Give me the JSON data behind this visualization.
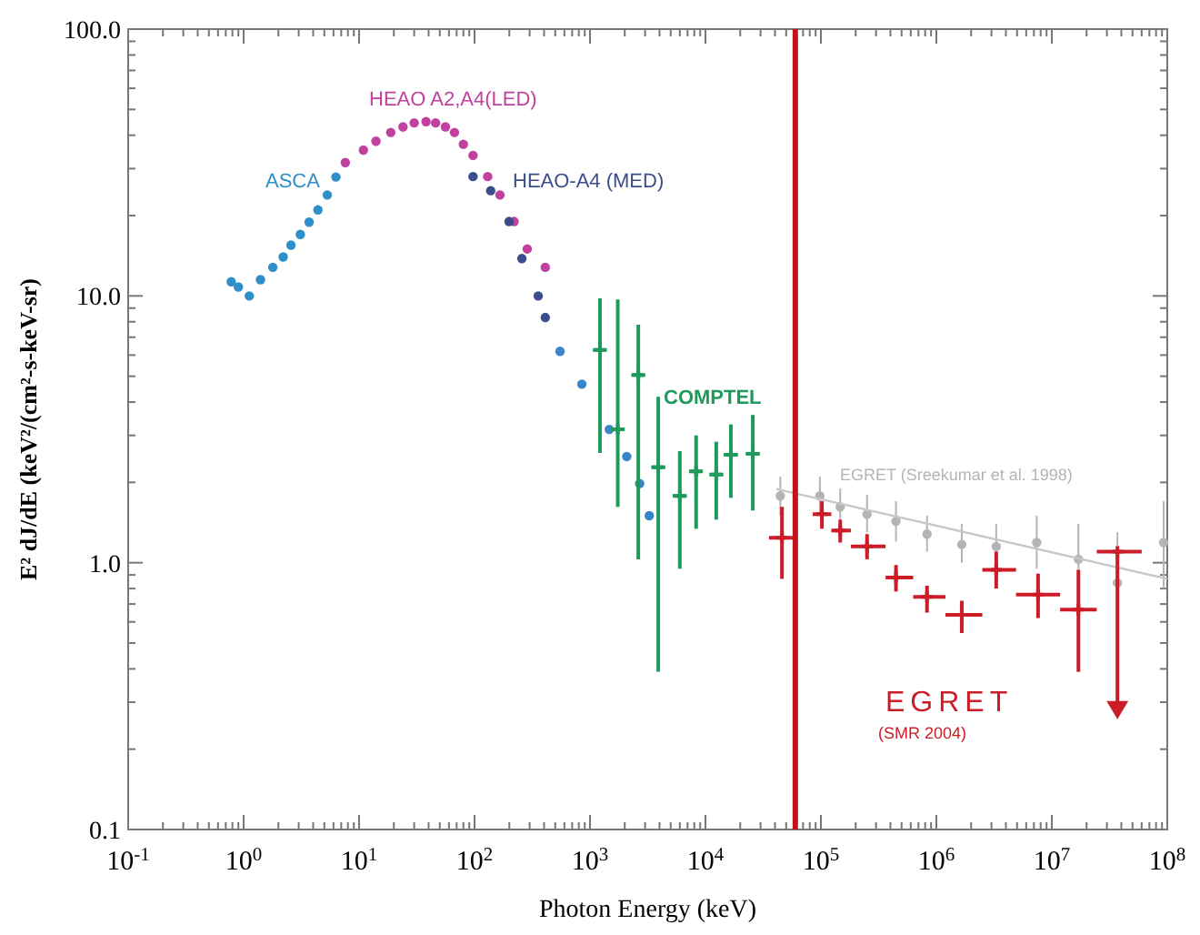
{
  "chart_data": {
    "type": "scatter",
    "log": "xy",
    "xlabel": "Photon Energy (keV)",
    "ylabel": "E² dJ/dE (keV²/(cm²-s-keV-sr)",
    "xlim": [
      0.1,
      100000000
    ],
    "ylim": [
      0.1,
      100
    ],
    "xticks": [
      {
        "value": 0.1,
        "label": "10$^{-1}$"
      },
      {
        "value": 1,
        "label": "10$^{0}$"
      },
      {
        "value": 10,
        "label": "10$^{1}$"
      },
      {
        "value": 100,
        "label": "10$^{2}$"
      },
      {
        "value": 1000,
        "label": "10$^{3}$"
      },
      {
        "value": 10000,
        "label": "10$^{4}$"
      },
      {
        "value": 100000,
        "label": "10$^{5}$"
      },
      {
        "value": 1000000,
        "label": "10$^{6}$"
      },
      {
        "value": 10000000,
        "label": "10$^{7}$"
      },
      {
        "value": 100000000,
        "label": "10$^{8}$"
      },
      {
        "value": 0.2,
        "label": null
      },
      {
        "value": 0.3,
        "label": null
      },
      {
        "value": 0.4,
        "label": null
      },
      {
        "value": 0.5,
        "label": null
      },
      {
        "value": 0.6,
        "label": null
      },
      {
        "value": 0.7,
        "label": null
      },
      {
        "value": 0.8,
        "label": null
      },
      {
        "value": 0.9,
        "label": null
      },
      {
        "value": 2,
        "label": null
      },
      {
        "value": 3,
        "label": null
      },
      {
        "value": 4,
        "label": null
      },
      {
        "value": 5,
        "label": null
      },
      {
        "value": 6,
        "label": null
      },
      {
        "value": 7,
        "label": null
      },
      {
        "value": 8,
        "label": null
      },
      {
        "value": 9,
        "label": null
      },
      {
        "value": 20,
        "label": null
      },
      {
        "value": 30,
        "label": null
      },
      {
        "value": 40,
        "label": null
      },
      {
        "value": 50,
        "label": null
      },
      {
        "value": 60,
        "label": null
      },
      {
        "value": 70,
        "label": null
      },
      {
        "value": 80,
        "label": null
      },
      {
        "value": 90,
        "label": null
      },
      {
        "value": 200,
        "label": null
      },
      {
        "value": 300,
        "label": null
      },
      {
        "value": 400,
        "label": null
      },
      {
        "value": 500,
        "label": null
      },
      {
        "value": 600,
        "label": null
      },
      {
        "value": 700,
        "label": null
      },
      {
        "value": 800,
        "label": null
      },
      {
        "value": 900,
        "label": null
      },
      {
        "value": 2000,
        "label": null
      },
      {
        "value": 3000,
        "label": null
      },
      {
        "value": 4000,
        "label": null
      },
      {
        "value": 5000,
        "label": null
      },
      {
        "value": 6000,
        "label": null
      },
      {
        "value": 7000,
        "label": null
      },
      {
        "value": 8000,
        "label": null
      },
      {
        "value": 9000,
        "label": null
      },
      {
        "value": 20000,
        "label": null
      },
      {
        "value": 30000,
        "label": null
      },
      {
        "value": 40000,
        "label": null
      },
      {
        "value": 50000,
        "label": null
      },
      {
        "value": 60000,
        "label": null
      },
      {
        "value": 70000,
        "label": null
      },
      {
        "value": 80000,
        "label": null
      },
      {
        "value": 90000,
        "label": null
      },
      {
        "value": 200000,
        "label": null
      },
      {
        "value": 300000,
        "label": null
      },
      {
        "value": 400000,
        "label": null
      },
      {
        "value": 500000,
        "label": null
      },
      {
        "value": 600000,
        "label": null
      },
      {
        "value": 700000,
        "label": null
      },
      {
        "value": 800000,
        "label": null
      },
      {
        "value": 900000,
        "label": null
      },
      {
        "value": 2000000,
        "label": null
      },
      {
        "value": 3000000,
        "label": null
      },
      {
        "value": 4000000,
        "label": null
      },
      {
        "value": 5000000,
        "label": null
      },
      {
        "value": 6000000,
        "label": null
      },
      {
        "value": 7000000,
        "label": null
      },
      {
        "value": 8000000,
        "label": null
      },
      {
        "value": 9000000,
        "label": null
      },
      {
        "value": 20000000,
        "label": null
      },
      {
        "value": 30000000,
        "label": null
      },
      {
        "value": 40000000,
        "label": null
      },
      {
        "value": 50000000,
        "label": null
      },
      {
        "value": 60000000,
        "label": null
      },
      {
        "value": 70000000,
        "label": null
      },
      {
        "value": 80000000,
        "label": null
      },
      {
        "value": 90000000,
        "label": null
      }
    ],
    "yticks": [
      {
        "value": 0.1,
        "label": "0.1"
      },
      {
        "value": 1,
        "label": "1.0"
      },
      {
        "value": 10,
        "label": "10.0"
      },
      {
        "value": 100,
        "label": "100.0"
      },
      {
        "value": 0.2,
        "label": null
      },
      {
        "value": 0.3,
        "label": null
      },
      {
        "value": 0.4,
        "label": null
      },
      {
        "value": 0.5,
        "label": null
      },
      {
        "value": 0.6,
        "label": null
      },
      {
        "value": 0.7,
        "label": null
      },
      {
        "value": 0.8,
        "label": null
      },
      {
        "value": 0.9,
        "label": null
      },
      {
        "value": 2,
        "label": null
      },
      {
        "value": 3,
        "label": null
      },
      {
        "value": 4,
        "label": null
      },
      {
        "value": 5,
        "label": null
      },
      {
        "value": 6,
        "label": null
      },
      {
        "value": 7,
        "label": null
      },
      {
        "value": 8,
        "label": null
      },
      {
        "value": 9,
        "label": null
      },
      {
        "value": 20,
        "label": null
      },
      {
        "value": 30,
        "label": null
      },
      {
        "value": 40,
        "label": null
      },
      {
        "value": 50,
        "label": null
      },
      {
        "value": 60,
        "label": null
      },
      {
        "value": 70,
        "label": null
      },
      {
        "value": 80,
        "label": null
      },
      {
        "value": 90,
        "label": null
      }
    ],
    "ref_lines": [
      {
        "axis": "x",
        "value": 60000,
        "color": "#c0141c"
      }
    ],
    "annotations": [
      "(SMR 2004)"
    ],
    "series": [
      {
        "name": "ASCA",
        "color": "#2f8fc9",
        "marker": "circle",
        "x": [
          0.78,
          0.9,
          1.12,
          1.4,
          1.79,
          2.2,
          2.57,
          3.1,
          3.69,
          4.4,
          5.3,
          6.3
        ],
        "values": [
          11.3,
          10.8,
          10.0,
          11.5,
          12.8,
          14,
          15.5,
          17,
          18.9,
          21,
          23.9,
          27.9
        ]
      },
      {
        "name": "HEAO A2,A4(LED)",
        "color": "#c2409e",
        "marker": "circle",
        "x": [
          7.6,
          10.9,
          14,
          18.8,
          24,
          30,
          38,
          46,
          56,
          67,
          80,
          97,
          130,
          166,
          220,
          286,
          410
        ],
        "values": [
          31.6,
          35.2,
          38,
          41,
          43,
          44.5,
          45,
          44.5,
          43,
          41,
          37,
          33.6,
          28,
          23.9,
          19,
          15,
          12.8
        ]
      },
      {
        "name": "HEAO-A4 (MED)",
        "color": "#3b4d8c",
        "marker": "circle",
        "x": [
          97,
          138,
          199,
          257,
          356,
          410
        ],
        "values": [
          28,
          24.8,
          19,
          13.8,
          10,
          8.3
        ]
      },
      {
        "color": "#3a84c8",
        "marker": "circle",
        "x": [
          550,
          850,
          1470,
          2080,
          2690,
          3260
        ],
        "values": [
          6.2,
          4.67,
          3.16,
          2.5,
          1.98,
          1.5
        ]
      },
      {
        "name": "COMPTEL",
        "color": "#1e9a5a",
        "marker": "cross",
        "x": [
          1220,
          1740,
          2620,
          3900,
          6000,
          8300,
          12400,
          16600,
          25700
        ],
        "values": [
          6.27,
          3.16,
          5.05,
          2.28,
          1.78,
          2.2,
          2.14,
          2.54,
          2.56
        ],
        "errors": [
          [
            2.58,
            9.8
          ],
          [
            1.62,
            9.7
          ],
          [
            1.03,
            7.8
          ],
          [
            0.39,
            4.19
          ],
          [
            0.95,
            2.62
          ],
          [
            1.34,
            3.0
          ],
          [
            1.45,
            2.84
          ],
          [
            1.75,
            3.3
          ],
          [
            1.57,
            3.58
          ]
        ],
        "xerrors": [
          [
            1060,
            1400
          ],
          [
            1510,
            2000
          ],
          [
            2280,
            3010
          ],
          [
            3390,
            4490
          ],
          [
            5200,
            6900
          ],
          [
            7200,
            9500
          ],
          [
            10800,
            14300
          ],
          [
            14400,
            19100
          ],
          [
            22300,
            29600
          ]
        ]
      },
      {
        "name": "EGRET (Sreekumar et al. 1998)",
        "color": "#b4b4b4",
        "marker": "circle",
        "x": [
          44500,
          98000,
          147000,
          251000,
          447000,
          830000,
          1660000,
          3300000,
          7400000,
          17000000,
          37000000,
          93000000
        ],
        "values": [
          1.78,
          1.78,
          1.62,
          1.52,
          1.43,
          1.28,
          1.17,
          1.15,
          1.19,
          1.03,
          0.84,
          1.19
        ],
        "errors": [
          [
            1.5,
            2.1
          ],
          [
            1.5,
            2.1
          ],
          [
            1.4,
            1.9
          ],
          [
            1.3,
            1.8
          ],
          [
            1.2,
            1.7
          ],
          [
            1.1,
            1.5
          ],
          [
            1.0,
            1.4
          ],
          [
            0.95,
            1.4
          ],
          [
            0.95,
            1.5
          ],
          [
            0.75,
            1.4
          ],
          [
            0.6,
            1.3
          ],
          [
            0.8,
            1.7
          ]
        ]
      },
      {
        "type": "line",
        "color": "#c8c8c8",
        "x": [
          41000,
          100000000
        ],
        "values": [
          1.89,
          0.87
        ]
      },
      {
        "name": "EGRET",
        "color": "#cc1c28",
        "marker": "cross",
        "x": [
          46000,
          102000,
          147000,
          251000,
          447000,
          830000,
          1660000,
          3300000,
          7600000,
          17000000,
          37000000
        ],
        "values": [
          1.24,
          1.52,
          1.32,
          1.15,
          0.88,
          0.745,
          0.637,
          0.94,
          0.76,
          0.667,
          1.1
        ],
        "errors": [
          [
            0.87,
            1.62
          ],
          [
            1.34,
            1.7
          ],
          [
            1.19,
            1.45
          ],
          [
            1.03,
            1.28
          ],
          [
            0.78,
            0.98
          ],
          [
            0.65,
            0.82
          ],
          [
            0.545,
            0.72
          ],
          [
            0.8,
            1.1
          ],
          [
            0.62,
            0.91
          ],
          [
            0.39,
            0.94
          ],
          [
            0.28,
            1.1
          ]
        ],
        "xerrors": [
          [
            35500,
            59000
          ],
          [
            85000,
            123000
          ],
          [
            123000,
            182000
          ],
          [
            182000,
            363000
          ],
          [
            363000,
            630000
          ],
          [
            630000,
            1200000
          ],
          [
            1200000,
            2500000
          ],
          [
            2500000,
            4900000
          ],
          [
            4900000,
            11800000
          ],
          [
            11800000,
            24500000
          ],
          [
            24500000,
            60000000
          ]
        ]
      },
      {
        "color": "#cc1c28",
        "marker": "triangle",
        "x": [
          37000000
        ],
        "values": [
          0.28
        ]
      }
    ]
  }
}
